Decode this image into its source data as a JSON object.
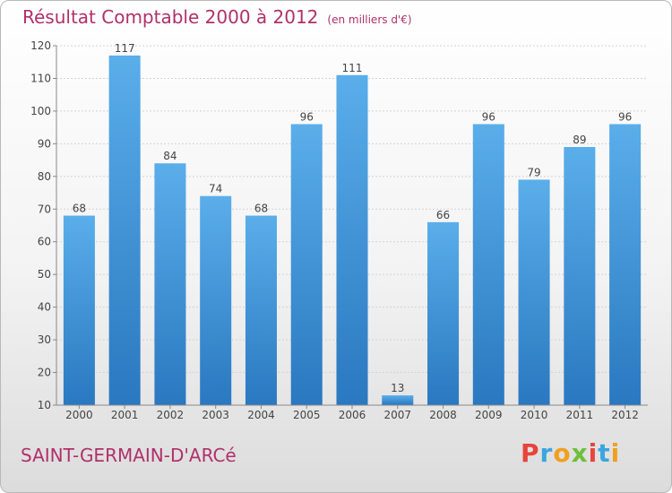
{
  "title": "Résultat Comptable 2000 à 2012",
  "subtitle": "(en milliers d'€)",
  "commune": "SAINT-GERMAIN-D'ARCé",
  "logo": {
    "text": "Proxiti",
    "letter_colors": [
      "#e8443a",
      "#3aa6dd",
      "#f0a020",
      "#6fbf3a",
      "#e8443a",
      "#3aa6dd",
      "#f0a020"
    ]
  },
  "colors": {
    "bar": "#4a9fe0",
    "bar_dark": "#2a78c0",
    "title": "#b0306a",
    "grid": "#d4d4d4"
  },
  "chart_data": {
    "type": "bar",
    "title": "Résultat Comptable 2000 à 2012",
    "categories": [
      "2000",
      "2001",
      "2002",
      "2003",
      "2004",
      "2005",
      "2006",
      "2007",
      "2008",
      "2009",
      "2010",
      "2011",
      "2012"
    ],
    "values": [
      68,
      117,
      84,
      74,
      68,
      96,
      111,
      13,
      66,
      96,
      79,
      89,
      96
    ],
    "ylim": [
      10,
      120
    ],
    "yticks": [
      10,
      20,
      30,
      40,
      50,
      60,
      70,
      80,
      90,
      100,
      110,
      120
    ],
    "grid": true
  }
}
